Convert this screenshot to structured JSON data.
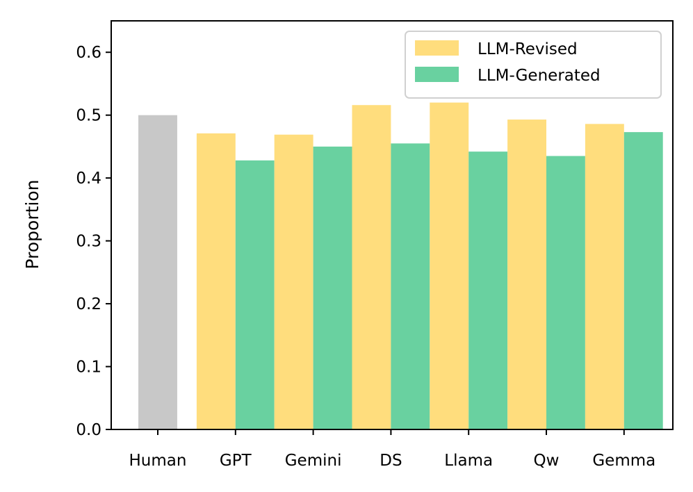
{
  "chart_data": {
    "type": "bar",
    "title": "",
    "xlabel": "",
    "ylabel": "Proportion",
    "ylim": [
      0,
      0.65
    ],
    "yticks": [
      "0.0",
      "0.1",
      "0.2",
      "0.3",
      "0.4",
      "0.5",
      "0.6"
    ],
    "categories": [
      "Human",
      "GPT",
      "Gemini",
      "DS",
      "Llama",
      "Qw",
      "Gemma"
    ],
    "human": {
      "name": "Human",
      "value": 0.5,
      "color": "#c8c8c8"
    },
    "series": [
      {
        "name": "LLM-Revised",
        "color": "#ffdd7d",
        "values": [
          null,
          0.471,
          0.469,
          0.516,
          0.52,
          0.493,
          0.486
        ]
      },
      {
        "name": "LLM-Generated",
        "color": "#69d1a0",
        "values": [
          null,
          0.428,
          0.45,
          0.455,
          0.442,
          0.435,
          0.473
        ]
      }
    ],
    "legend": {
      "position": "top-right",
      "entries": [
        "LLM-Revised",
        "LLM-Generated"
      ]
    },
    "grid": false
  }
}
